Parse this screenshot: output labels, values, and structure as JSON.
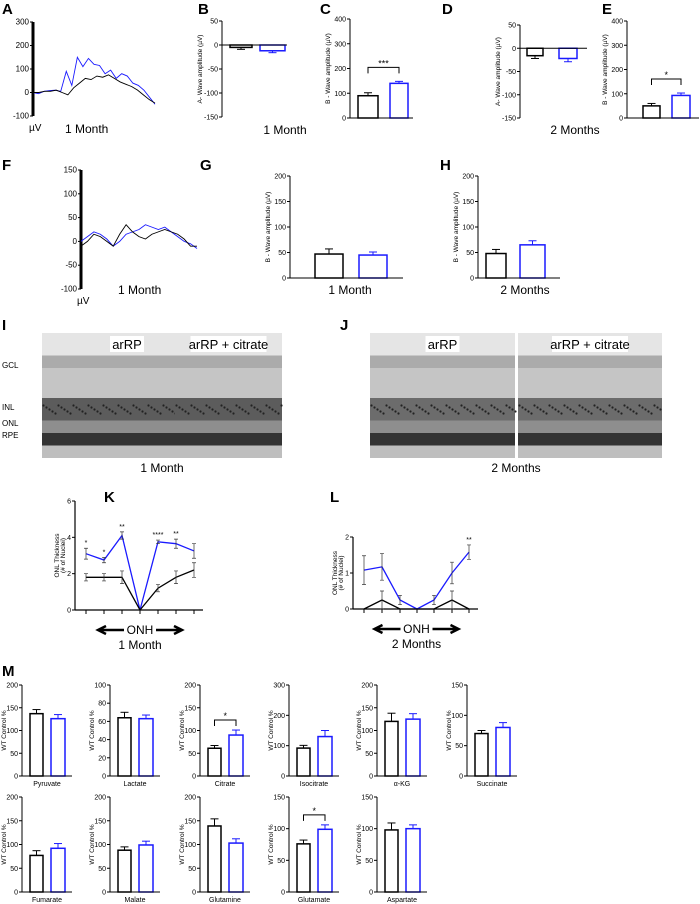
{
  "colors": {
    "control": "#000000",
    "treated": "#1a1aff"
  },
  "chart_data": [
    {
      "panel": "A",
      "type": "line",
      "caption": "1 Month",
      "unit_label": "µV",
      "ylim": [
        -100,
        300
      ],
      "ticks": [
        300,
        200,
        100,
        0,
        -100
      ],
      "series": [
        {
          "color": "#1a1aff",
          "values": [
            0,
            -5,
            5,
            8,
            10,
            5,
            90,
            30,
            150,
            110,
            145,
            120,
            115,
            80,
            95,
            60,
            80,
            70,
            40,
            30,
            10,
            -20,
            -50
          ]
        },
        {
          "color": "#000000",
          "values": [
            0,
            0,
            5,
            5,
            10,
            0,
            -10,
            20,
            40,
            60,
            55,
            70,
            65,
            75,
            60,
            45,
            35,
            25,
            10,
            -10,
            -30,
            -45
          ]
        }
      ]
    },
    {
      "panel": "B",
      "type": "bar",
      "ylabel": "A- Wave amplitude (µV)",
      "ylim": [
        -150,
        50
      ],
      "ticks": [
        50,
        0,
        -50,
        -100,
        -150
      ],
      "means": [
        -5,
        -12
      ],
      "sem": [
        4,
        4
      ],
      "sig": ""
    },
    {
      "panel": "C",
      "type": "bar",
      "ylabel": "B - Wave amplitude (µV)",
      "ylim": [
        0,
        400
      ],
      "ticks": [
        400,
        300,
        200,
        100,
        0
      ],
      "means": [
        90,
        140
      ],
      "sem": [
        12,
        8
      ],
      "sig": "***"
    },
    {
      "panel": "D",
      "type": "bar",
      "ylabel": "A- Wave amplitude (µV)",
      "ylim": [
        -150,
        50
      ],
      "ticks": [
        50,
        0,
        -50,
        -100,
        -150
      ],
      "means": [
        -16,
        -22
      ],
      "sem": [
        6,
        7
      ],
      "sig": ""
    },
    {
      "panel": "E",
      "type": "bar",
      "ylabel": "B - Wave amplitude (µV)",
      "ylim": [
        0,
        400
      ],
      "ticks": [
        400,
        300,
        200,
        100,
        0
      ],
      "means": [
        50,
        93
      ],
      "sem": [
        10,
        10
      ],
      "sig": "*"
    },
    {
      "panel": "F",
      "type": "line",
      "caption": "1 Month",
      "unit_label": "µV",
      "ylim": [
        -100,
        150
      ],
      "ticks": [
        150,
        100,
        50,
        0,
        -50,
        -100
      ],
      "series": [
        {
          "color": "#1a1aff",
          "values": [
            0,
            10,
            20,
            15,
            5,
            -10,
            0,
            15,
            20,
            25,
            35,
            30,
            25,
            30,
            20,
            10,
            0,
            -5,
            -15
          ]
        },
        {
          "color": "#000000",
          "values": [
            -10,
            0,
            15,
            10,
            0,
            -10,
            15,
            35,
            20,
            10,
            5,
            15,
            20,
            25,
            20,
            15,
            5,
            -10,
            -10
          ]
        }
      ]
    },
    {
      "panel": "G",
      "type": "bar",
      "ylabel": "B - Wave amplitude (µV)",
      "ylim": [
        0,
        200
      ],
      "ticks": [
        200,
        150,
        100,
        50,
        0
      ],
      "means": [
        47,
        45
      ],
      "sem": [
        10,
        6
      ],
      "sig": ""
    },
    {
      "panel": "H",
      "type": "bar",
      "ylabel": "B - Wave amplitude (µV)",
      "ylim": [
        0,
        200
      ],
      "ticks": [
        200,
        150,
        100,
        50,
        0
      ],
      "means": [
        48,
        65
      ],
      "sem": [
        8,
        8
      ],
      "sig": ""
    },
    {
      "panel": "K",
      "type": "line",
      "ylabel": [
        "ONL Thickness",
        "(# of Nuclei)"
      ],
      "ylim": [
        0,
        6
      ],
      "ticks": [
        6,
        4,
        2,
        0
      ],
      "xlabel": "ONH",
      "caption": "1 Month",
      "series": [
        {
          "color": "#1a1aff",
          "values": [
            3.1,
            2.75,
            4.1,
            0,
            3.75,
            3.65,
            3.25
          ],
          "err": [
            0.3,
            0.15,
            0.2,
            0,
            0.1,
            0.25,
            0.4
          ]
        },
        {
          "color": "#000000",
          "values": [
            1.8,
            1.8,
            1.8,
            0,
            1.2,
            1.8,
            2.2
          ],
          "err": [
            0.2,
            0.2,
            0.35,
            0,
            0.2,
            0.35,
            0.4
          ]
        }
      ],
      "sig": [
        "*",
        "*",
        "**",
        "",
        "****",
        "**",
        ""
      ]
    },
    {
      "panel": "L",
      "type": "line",
      "ylabel": [
        "ONL Thickness",
        "(# of Nuclei)"
      ],
      "ylim": [
        0,
        2
      ],
      "ticks": [
        2,
        1,
        0
      ],
      "xlabel": "ONH",
      "caption": "2 Months",
      "series": [
        {
          "color": "#1a1aff",
          "values": [
            1.08,
            1.17,
            0.25,
            0,
            0.25,
            1.0,
            1.58
          ],
          "err": [
            0.4,
            0.37,
            0.13,
            0,
            0.13,
            0.3,
            0.2
          ]
        },
        {
          "color": "#000000",
          "values": [
            0,
            0.25,
            0,
            0,
            0,
            0.25,
            0
          ],
          "err": [
            0,
            0.25,
            0,
            0,
            0,
            0.25,
            0
          ]
        }
      ],
      "sig": [
        "",
        "",
        "",
        "",
        "",
        "",
        "**"
      ]
    },
    {
      "panel": "M",
      "type": "bar",
      "ylabel": "WT Control %",
      "charts": [
        {
          "category": "Pyruvate",
          "ylim": [
            0,
            200
          ],
          "ticks": [
            200,
            150,
            100,
            50,
            0
          ],
          "means": [
            137,
            126
          ],
          "sem": [
            9,
            9
          ],
          "sig": ""
        },
        {
          "category": "Lactate",
          "ylim": [
            0,
            100
          ],
          "ticks": [
            100,
            80,
            60,
            40,
            20,
            0
          ],
          "means": [
            64,
            63
          ],
          "sem": [
            6,
            4
          ],
          "sig": ""
        },
        {
          "category": "Citrate",
          "ylim": [
            0,
            200
          ],
          "ticks": [
            200,
            150,
            100,
            50,
            0
          ],
          "means": [
            61,
            90
          ],
          "sem": [
            6,
            11
          ],
          "sig": "*"
        },
        {
          "category": "Isocitrate",
          "ylim": [
            0,
            300
          ],
          "ticks": [
            300,
            200,
            100,
            0
          ],
          "means": [
            92,
            130
          ],
          "sem": [
            9,
            20
          ],
          "sig": ""
        },
        {
          "category": "α-KG",
          "ylim": [
            0,
            200
          ],
          "ticks": [
            200,
            150,
            100,
            50,
            0
          ],
          "means": [
            120,
            125
          ],
          "sem": [
            18,
            12
          ],
          "sig": ""
        },
        {
          "category": "Succinate",
          "ylim": [
            0,
            150
          ],
          "ticks": [
            150,
            100,
            50,
            0
          ],
          "means": [
            70,
            80
          ],
          "sem": [
            5,
            8
          ],
          "sig": ""
        },
        {
          "category": "Fumarate",
          "ylim": [
            0,
            200
          ],
          "ticks": [
            200,
            150,
            100,
            50,
            0
          ],
          "means": [
            77,
            92
          ],
          "sem": [
            10,
            10
          ],
          "sig": ""
        },
        {
          "category": "Malate",
          "ylim": [
            0,
            200
          ],
          "ticks": [
            200,
            150,
            100,
            50,
            0
          ],
          "means": [
            88,
            99
          ],
          "sem": [
            7,
            8
          ],
          "sig": ""
        },
        {
          "category": "Glutamine",
          "ylim": [
            0,
            200
          ],
          "ticks": [
            200,
            150,
            100,
            50,
            0
          ],
          "means": [
            139,
            103
          ],
          "sem": [
            15,
            9
          ],
          "sig": ""
        },
        {
          "category": "Glutamate",
          "ylim": [
            0,
            150
          ],
          "ticks": [
            150,
            100,
            50,
            0
          ],
          "means": [
            76,
            99
          ],
          "sem": [
            6,
            7
          ],
          "sig": "*"
        },
        {
          "category": "Aspartate",
          "ylim": [
            0,
            150
          ],
          "ticks": [
            150,
            100,
            50,
            0
          ],
          "means": [
            98,
            100
          ],
          "sem": [
            11,
            6
          ],
          "sig": ""
        }
      ]
    }
  ],
  "captions": {
    "bc": "1 Month",
    "de": "2 Months",
    "g": "1 Month",
    "h": "2 Months",
    "i": "1 Month",
    "j": "2 Months"
  },
  "histology": {
    "panels": [
      {
        "panel": "I",
        "images": [
          "arRP",
          "arRP + citrate"
        ],
        "layers": [
          "GCL",
          "INL",
          "ONL",
          "RPE"
        ]
      },
      {
        "panel": "J",
        "images": [
          "arRP",
          "arRP + citrate"
        ]
      }
    ]
  },
  "panel_letters": [
    "A",
    "B",
    "C",
    "D",
    "E",
    "F",
    "G",
    "H",
    "I",
    "J",
    "K",
    "L",
    "M"
  ]
}
